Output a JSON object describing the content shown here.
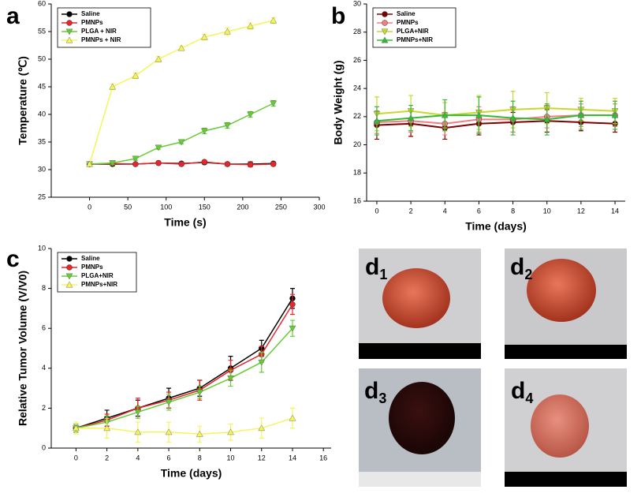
{
  "chart_data": [
    {
      "type": "line",
      "panel_label": "a",
      "x_label": "Time (s)",
      "y_label": "Temperature (℃)",
      "xlim": [
        -50,
        300
      ],
      "ylim": [
        25,
        60
      ],
      "xticks": [
        0,
        50,
        100,
        150,
        200,
        250,
        300
      ],
      "yticks": [
        25,
        30,
        35,
        40,
        45,
        50,
        55,
        60
      ],
      "x": [
        0,
        30,
        60,
        90,
        120,
        150,
        180,
        210,
        240
      ],
      "series": [
        {
          "name": "Saline",
          "color": "#000000",
          "marker": "circle",
          "values": [
            31,
            31,
            31,
            31.2,
            31.1,
            31.3,
            31,
            31,
            31.1
          ],
          "errors": [
            0.2,
            0.3,
            0.2,
            0.3,
            0.3,
            0.3,
            0.3,
            0.4,
            0.3
          ]
        },
        {
          "name": "PMNPs",
          "color": "#e8252a",
          "marker": "circle",
          "values": [
            31,
            31.1,
            31,
            31.2,
            31,
            31.4,
            31,
            30.9,
            31
          ],
          "errors": [
            0.2,
            0.3,
            0.2,
            0.3,
            0.3,
            0.3,
            0.3,
            0.4,
            0.3
          ]
        },
        {
          "name": "PLGA + NIR",
          "color": "#66cc33",
          "marker": "triangle-down",
          "values": [
            31,
            31.2,
            32,
            34,
            35,
            37,
            38,
            40,
            42
          ],
          "errors": [
            0.2,
            0.3,
            0.3,
            0.3,
            0.3,
            0.5,
            0.5,
            0.5,
            0.5
          ]
        },
        {
          "name": "PMNPs + NIR",
          "color": "#f5f55a",
          "marker": "triangle-up",
          "values": [
            31,
            45,
            47,
            50,
            52,
            54,
            55,
            56,
            57
          ],
          "errors": [
            0.2,
            0.5,
            0.5,
            0.5,
            0.3,
            0.5,
            0.7,
            0.6,
            0.5
          ]
        }
      ]
    },
    {
      "type": "line",
      "panel_label": "b",
      "x_label": "Time (days)",
      "y_label": "Body Weight (g)",
      "xlim": [
        -0.6,
        14.6
      ],
      "ylim": [
        16,
        30
      ],
      "xticks": [
        0,
        2,
        4,
        6,
        8,
        10,
        12,
        14
      ],
      "yticks": [
        16,
        18,
        20,
        22,
        24,
        26,
        28,
        30
      ],
      "x": [
        0,
        2,
        4,
        6,
        8,
        10,
        12,
        14
      ],
      "series": [
        {
          "name": "Saline",
          "color": "#800000",
          "marker": "circle",
          "values": [
            21.4,
            21.5,
            21.2,
            21.5,
            21.6,
            21.7,
            21.6,
            21.5
          ],
          "errors": [
            1,
            0.9,
            0.8,
            0.8,
            0.7,
            0.8,
            0.6,
            0.6
          ]
        },
        {
          "name": "PMNPs",
          "color": "#f08080",
          "marker": "circle",
          "values": [
            21.6,
            21.7,
            21.5,
            21.8,
            21.8,
            22,
            22.1,
            22.1
          ],
          "errors": [
            0.8,
            0.8,
            0.8,
            0.9,
            0.9,
            0.8,
            0.8,
            0.8
          ]
        },
        {
          "name": "PLGA+NIR",
          "color": "#c8d62e",
          "marker": "triangle-down",
          "values": [
            22.2,
            22.4,
            22.1,
            22.3,
            22.5,
            22.6,
            22.5,
            22.4
          ],
          "errors": [
            1.2,
            1.1,
            0.9,
            1.2,
            1.3,
            1.1,
            0.8,
            0.9
          ]
        },
        {
          "name": "PMNPs+NIR",
          "color": "#33bb33",
          "marker": "triangle-up",
          "values": [
            21.7,
            21.9,
            22.1,
            22.1,
            21.9,
            21.8,
            22.1,
            22.1
          ],
          "errors": [
            1,
            0.9,
            1.1,
            1.3,
            1.2,
            1.1,
            1,
            1
          ]
        }
      ]
    },
    {
      "type": "line",
      "panel_label": "c",
      "x_label": "Time (days)",
      "y_label": "Relative Tumor Volume (V/V0)",
      "xlim": [
        -1.6,
        16.5
      ],
      "ylim": [
        0,
        10
      ],
      "xticks": [
        0,
        2,
        4,
        6,
        8,
        10,
        12,
        14,
        16
      ],
      "yticks": [
        0,
        2,
        4,
        6,
        8,
        10
      ],
      "x": [
        0,
        2,
        4,
        6,
        8,
        10,
        12,
        14
      ],
      "series": [
        {
          "name": "Saline",
          "color": "#000000",
          "marker": "circle",
          "values": [
            1,
            1.5,
            2,
            2.5,
            3,
            4,
            5,
            7.5
          ],
          "errors": [
            0.2,
            0.4,
            0.4,
            0.5,
            0.4,
            0.6,
            0.4,
            0.5
          ]
        },
        {
          "name": "PMNPs",
          "color": "#e8252a",
          "marker": "circle",
          "values": [
            1,
            1.4,
            2,
            2.4,
            2.9,
            3.9,
            4.7,
            7.2
          ],
          "errors": [
            0.2,
            0.3,
            0.5,
            0.4,
            0.5,
            0.5,
            0.4,
            0.5
          ]
        },
        {
          "name": "PLGA+NIR",
          "color": "#66cc33",
          "marker": "triangle-down",
          "values": [
            1,
            1.3,
            1.8,
            2.3,
            2.8,
            3.5,
            4.3,
            6
          ],
          "errors": [
            0.2,
            0.3,
            0.3,
            0.4,
            0.3,
            0.4,
            0.5,
            0.4
          ]
        },
        {
          "name": "PMNPs+NIR",
          "color": "#f5f55a",
          "marker": "triangle-up",
          "values": [
            1,
            1,
            0.8,
            0.8,
            0.7,
            0.8,
            1,
            1.5
          ],
          "errors": [
            0.3,
            0.5,
            0.5,
            0.5,
            0.4,
            0.4,
            0.5,
            0.5
          ]
        }
      ]
    }
  ],
  "photos": [
    {
      "label": "d",
      "sub": "1"
    },
    {
      "label": "d",
      "sub": "2"
    },
    {
      "label": "d",
      "sub": "3"
    },
    {
      "label": "d",
      "sub": "4"
    }
  ]
}
